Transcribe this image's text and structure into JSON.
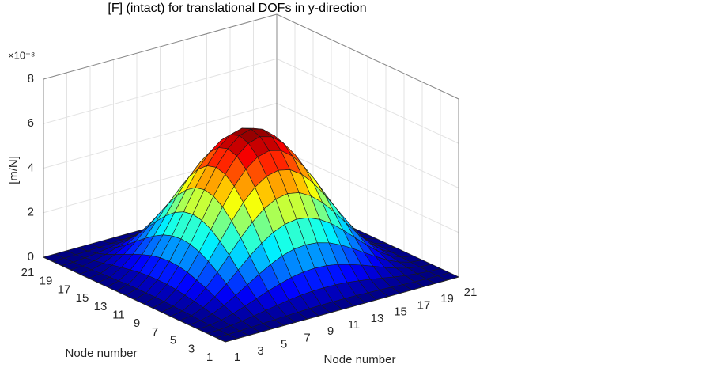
{
  "chart_data": {
    "type": "surface",
    "title": "[F] (intact) for translational DOFs in y-direction",
    "xlabel": "Node number",
    "ylabel": "Node number",
    "zlabel": "[m/N]",
    "z_multiplier": "×10⁻⁸",
    "x": [
      1,
      2,
      3,
      4,
      5,
      6,
      7,
      8,
      9,
      10,
      11,
      12,
      13,
      14,
      15,
      16,
      17,
      18,
      19,
      20,
      21
    ],
    "y": [
      1,
      2,
      3,
      4,
      5,
      6,
      7,
      8,
      9,
      10,
      11,
      12,
      13,
      14,
      15,
      16,
      17,
      18,
      19,
      20,
      21
    ],
    "z": [
      [
        0,
        0,
        0,
        0,
        0,
        0,
        0,
        0,
        0,
        0,
        0,
        0,
        0,
        0,
        0,
        0,
        0,
        0,
        0,
        0,
        0
      ],
      [
        0,
        0,
        0.01,
        0.03,
        0.05,
        0.08,
        0.1,
        0.12,
        0.14,
        0.15,
        0.15,
        0.15,
        0.14,
        0.12,
        0.1,
        0.08,
        0.05,
        0.03,
        0.01,
        0,
        0
      ],
      [
        0,
        0.01,
        0.06,
        0.12,
        0.2,
        0.3,
        0.39,
        0.47,
        0.54,
        0.58,
        0.59,
        0.58,
        0.54,
        0.47,
        0.39,
        0.3,
        0.2,
        0.12,
        0.06,
        0.01,
        0
      ],
      [
        0,
        0.03,
        0.12,
        0.26,
        0.44,
        0.64,
        0.84,
        1.01,
        1.16,
        1.25,
        1.28,
        1.25,
        1.16,
        1.01,
        0.84,
        0.64,
        0.44,
        0.26,
        0.12,
        0.03,
        0
      ],
      [
        0,
        0.05,
        0.2,
        0.44,
        0.74,
        1.07,
        1.4,
        1.7,
        1.94,
        2.09,
        2.14,
        2.09,
        1.94,
        1.7,
        1.4,
        1.07,
        0.74,
        0.44,
        0.2,
        0.05,
        0
      ],
      [
        0,
        0.08,
        0.3,
        0.64,
        1.07,
        1.55,
        2.03,
        2.46,
        2.8,
        3.02,
        3.1,
        3.02,
        2.8,
        2.46,
        2.03,
        1.55,
        1.07,
        0.64,
        0.3,
        0.08,
        0
      ],
      [
        0,
        0.1,
        0.39,
        0.84,
        1.4,
        2.03,
        2.66,
        3.22,
        3.67,
        3.96,
        4.06,
        3.96,
        3.67,
        3.22,
        2.66,
        2.03,
        1.4,
        0.84,
        0.39,
        0.1,
        0
      ],
      [
        0,
        0.12,
        0.47,
        1.01,
        1.7,
        2.46,
        3.22,
        3.91,
        4.45,
        4.8,
        4.92,
        4.8,
        4.45,
        3.91,
        3.22,
        2.46,
        1.7,
        1.01,
        0.47,
        0.12,
        0
      ],
      [
        0,
        0.14,
        0.54,
        1.16,
        1.94,
        2.8,
        3.67,
        4.45,
        5.07,
        5.47,
        5.61,
        5.47,
        5.07,
        4.45,
        3.67,
        2.8,
        1.94,
        1.16,
        0.54,
        0.14,
        0
      ],
      [
        0,
        0.15,
        0.58,
        1.25,
        2.09,
        3.02,
        3.96,
        4.8,
        5.47,
        5.9,
        6.05,
        5.9,
        5.47,
        4.8,
        3.96,
        3.02,
        2.09,
        1.25,
        0.58,
        0.15,
        0
      ],
      [
        0,
        0.15,
        0.59,
        1.28,
        2.14,
        3.1,
        4.06,
        4.92,
        5.61,
        6.05,
        6.2,
        6.05,
        5.61,
        4.92,
        4.06,
        3.1,
        2.14,
        1.28,
        0.59,
        0.15,
        0
      ],
      [
        0,
        0.15,
        0.58,
        1.25,
        2.09,
        3.02,
        3.96,
        4.8,
        5.47,
        5.9,
        6.05,
        5.9,
        5.47,
        4.8,
        3.96,
        3.02,
        2.09,
        1.25,
        0.58,
        0.15,
        0
      ],
      [
        0,
        0.14,
        0.54,
        1.16,
        1.94,
        2.8,
        3.67,
        4.45,
        5.07,
        5.47,
        5.61,
        5.47,
        5.07,
        4.45,
        3.67,
        2.8,
        1.94,
        1.16,
        0.54,
        0.14,
        0
      ],
      [
        0,
        0.12,
        0.47,
        1.01,
        1.7,
        2.46,
        3.22,
        3.91,
        4.45,
        4.8,
        4.92,
        4.8,
        4.45,
        3.91,
        3.22,
        2.46,
        1.7,
        1.01,
        0.47,
        0.12,
        0
      ],
      [
        0,
        0.1,
        0.39,
        0.84,
        1.4,
        2.03,
        2.66,
        3.22,
        3.67,
        3.96,
        4.06,
        3.96,
        3.67,
        3.22,
        2.66,
        2.03,
        1.4,
        0.84,
        0.39,
        0.1,
        0
      ],
      [
        0,
        0.08,
        0.3,
        0.64,
        1.07,
        1.55,
        2.03,
        2.46,
        2.8,
        3.02,
        3.1,
        3.02,
        2.8,
        2.46,
        2.03,
        1.55,
        1.07,
        0.64,
        0.3,
        0.08,
        0
      ],
      [
        0,
        0.05,
        0.2,
        0.44,
        0.74,
        1.07,
        1.4,
        1.7,
        1.94,
        2.09,
        2.14,
        2.09,
        1.94,
        1.7,
        1.4,
        1.07,
        0.74,
        0.44,
        0.2,
        0.05,
        0
      ],
      [
        0,
        0.03,
        0.12,
        0.26,
        0.44,
        0.64,
        0.84,
        1.01,
        1.16,
        1.25,
        1.28,
        1.25,
        1.16,
        1.01,
        0.84,
        0.64,
        0.44,
        0.26,
        0.12,
        0.03,
        0
      ],
      [
        0,
        0.01,
        0.06,
        0.12,
        0.2,
        0.3,
        0.39,
        0.47,
        0.54,
        0.58,
        0.59,
        0.58,
        0.54,
        0.47,
        0.39,
        0.3,
        0.2,
        0.12,
        0.06,
        0.01,
        0
      ],
      [
        0,
        0,
        0.01,
        0.03,
        0.05,
        0.08,
        0.1,
        0.12,
        0.14,
        0.15,
        0.15,
        0.15,
        0.14,
        0.12,
        0.1,
        0.08,
        0.05,
        0.03,
        0.01,
        0,
        0
      ],
      [
        0,
        0,
        0,
        0,
        0,
        0,
        0,
        0,
        0,
        0,
        0,
        0,
        0,
        0,
        0,
        0,
        0,
        0,
        0,
        0,
        0
      ]
    ],
    "xlim": [
      1,
      21
    ],
    "ylim": [
      1,
      21
    ],
    "zlim": [
      0,
      8
    ],
    "xticks": [
      1,
      3,
      5,
      7,
      9,
      11,
      13,
      15,
      17,
      19,
      21
    ],
    "yticks": [
      1,
      3,
      5,
      7,
      9,
      11,
      13,
      15,
      17,
      19,
      21
    ],
    "zticks": [
      0,
      2,
      4,
      6,
      8
    ],
    "colormap": "jet",
    "grid": true,
    "edge_color": "#1a1a1a"
  }
}
